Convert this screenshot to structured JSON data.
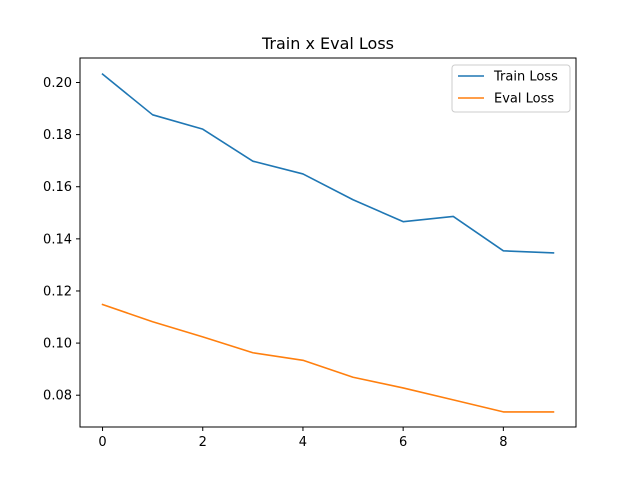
{
  "chart_data": {
    "type": "line",
    "title": "Train x Eval Loss",
    "xlabel": "",
    "ylabel": "",
    "x": [
      0,
      1,
      2,
      3,
      4,
      5,
      6,
      7,
      8,
      9
    ],
    "xlim": [
      -0.45,
      9.45
    ],
    "ylim": [
      0.0678,
      0.2094
    ],
    "xticks": [
      0,
      2,
      4,
      6,
      8
    ],
    "yticks": [
      0.08,
      0.1,
      0.12,
      0.14,
      0.16,
      0.18,
      0.2
    ],
    "ytick_labels": [
      "0.08",
      "0.10",
      "0.12",
      "0.14",
      "0.16",
      "0.18",
      "0.20"
    ],
    "grid": false,
    "legend_position": "top-right",
    "series": [
      {
        "name": "Train Loss",
        "color": "#1f77b4",
        "values": [
          0.2032,
          0.1876,
          0.1821,
          0.1698,
          0.1649,
          0.155,
          0.1466,
          0.1486,
          0.1354,
          0.1346
        ]
      },
      {
        "name": "Eval Loss",
        "color": "#ff7f0e",
        "values": [
          0.1148,
          0.1082,
          0.1024,
          0.0963,
          0.0934,
          0.0869,
          0.0828,
          0.0782,
          0.0736,
          0.0736
        ]
      }
    ]
  }
}
